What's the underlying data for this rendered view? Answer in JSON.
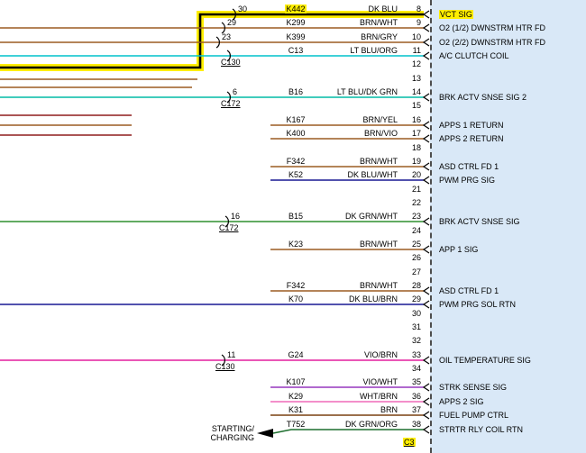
{
  "colors": {
    "highlight": "#ffee00",
    "panel_bg": "#d9e8f7",
    "black": "#000000",
    "brown": "#9b5c22",
    "dark_brown": "#7a4111",
    "maroon": "#8f1d1d",
    "cyan": "#00c2cc",
    "teal": "#00bba6",
    "navy": "#191994",
    "green": "#2f8f2f",
    "dark_green": "#1d6e2e",
    "magenta": "#e41f9e",
    "violet": "#9636bd",
    "pink": "#ef6ab8"
  },
  "panel": {
    "connector_id": "C3"
  },
  "offpage": {
    "line1": "STARTING/",
    "line2": "CHARGING"
  },
  "rows": [
    {
      "pin": "8",
      "left_pin": "30",
      "circuit": "K442",
      "color_label": "DK BLU",
      "signal": "VCT SIG",
      "wire": "black",
      "highlight": true
    },
    {
      "pin": "9",
      "left_pin": "29",
      "circuit": "K299",
      "color_label": "BRN/WHT",
      "signal": "O2 (1/2) DWNSTRM HTR FD",
      "wire": "brown"
    },
    {
      "pin": "10",
      "left_pin": "23",
      "circuit": "K399",
      "color_label": "BRN/GRY",
      "signal": "O2 (2/2) DWNSTRM HTR FD",
      "wire": "brown"
    },
    {
      "pin": "11",
      "left_connector": "C130",
      "circuit": "C13",
      "color_label": "LT BLU/ORG",
      "signal": "A/C CLUTCH COIL",
      "wire": "cyan"
    },
    {
      "pin": "12"
    },
    {
      "pin": "13"
    },
    {
      "pin": "14",
      "left_pin": "6",
      "left_connector": "C172",
      "circuit": "B16",
      "color_label": "LT BLU/DK GRN",
      "signal": "BRK ACTV SNSE SIG 2",
      "wire": "teal"
    },
    {
      "pin": "15"
    },
    {
      "pin": "16",
      "circuit": "K167",
      "color_label": "BRN/YEL",
      "signal": "APPS 1 RETURN",
      "wire": "brown"
    },
    {
      "pin": "17",
      "circuit": "K400",
      "color_label": "BRN/VIO",
      "signal": "APPS 2 RETURN",
      "wire": "brown"
    },
    {
      "pin": "18"
    },
    {
      "pin": "19",
      "circuit": "F342",
      "color_label": "BRN/WHT",
      "signal": "ASD CTRL FD 1",
      "wire": "brown"
    },
    {
      "pin": "20",
      "circuit": "K52",
      "color_label": "DK BLU/WHT",
      "signal": "PWM PRG SIG",
      "wire": "navy"
    },
    {
      "pin": "21"
    },
    {
      "pin": "22"
    },
    {
      "pin": "23",
      "left_pin": "16",
      "left_connector": "C172",
      "circuit": "B15",
      "color_label": "DK GRN/WHT",
      "signal": "BRK ACTV SNSE SIG",
      "wire": "green"
    },
    {
      "pin": "24"
    },
    {
      "pin": "25",
      "circuit": "K23",
      "color_label": "BRN/WHT",
      "signal": "APP 1 SIG",
      "wire": "brown"
    },
    {
      "pin": "26"
    },
    {
      "pin": "27"
    },
    {
      "pin": "28",
      "circuit": "F342",
      "color_label": "BRN/WHT",
      "signal": "ASD CTRL FD 1",
      "wire": "brown"
    },
    {
      "pin": "29",
      "circuit": "K70",
      "color_label": "DK BLU/BRN",
      "signal": "PWM PRG SOL RTN",
      "wire": "navy"
    },
    {
      "pin": "30"
    },
    {
      "pin": "31"
    },
    {
      "pin": "32"
    },
    {
      "pin": "33",
      "left_pin": "11",
      "left_connector": "C130",
      "circuit": "G24",
      "color_label": "VIO/BRN",
      "signal": "OIL TEMPERATURE SIG",
      "wire": "magenta"
    },
    {
      "pin": "34"
    },
    {
      "pin": "35",
      "circuit": "K107",
      "color_label": "VIO/WHT",
      "signal": "STRK SENSE SIG",
      "wire": "violet"
    },
    {
      "pin": "36",
      "circuit": "K29",
      "color_label": "WHT/BRN",
      "signal": "APPS 2 SIG",
      "wire": "pink"
    },
    {
      "pin": "37",
      "circuit": "K31",
      "color_label": "BRN",
      "signal": "FUEL PUMP CTRL",
      "wire": "dark_brown"
    },
    {
      "pin": "38",
      "circuit": "T752",
      "color_label": "DK GRN/ORG",
      "signal": "STRTR RLY COIL RTN",
      "wire": "dark_green"
    }
  ]
}
